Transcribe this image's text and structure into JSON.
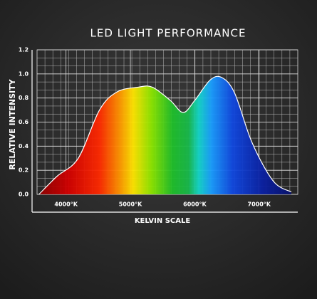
{
  "chart_data": {
    "type": "area",
    "title": "LED LIGHT PERFORMANCE",
    "xlabel": "KELVIN SCALE",
    "ylabel": "RELATIVE INTENSITY",
    "x": [
      3580,
      3860,
      4190,
      4520,
      4790,
      5120,
      5340,
      5620,
      5820,
      6000,
      6240,
      6420,
      6620,
      6890,
      7220,
      7500
    ],
    "values": [
      0,
      0.15,
      0.3,
      0.7,
      0.85,
      0.89,
      0.89,
      0.78,
      0.68,
      0.78,
      0.95,
      0.97,
      0.84,
      0.43,
      0.11,
      0.02
    ],
    "xlim": [
      3550,
      7600
    ],
    "xticks": [
      {
        "value": 4000,
        "label": "4000°K"
      },
      {
        "value": 5000,
        "label": "5000°K"
      },
      {
        "value": 6000,
        "label": "6000°K"
      },
      {
        "value": 7000,
        "label": "7000°K"
      }
    ],
    "ylim": [
      0,
      1.2
    ],
    "yticks": [
      {
        "value": 0,
        "label": "0.0"
      },
      0.2,
      0.4,
      0.6,
      0.8,
      {
        "value": 1,
        "label": "1.0"
      },
      1.2
    ],
    "grid": true
  }
}
